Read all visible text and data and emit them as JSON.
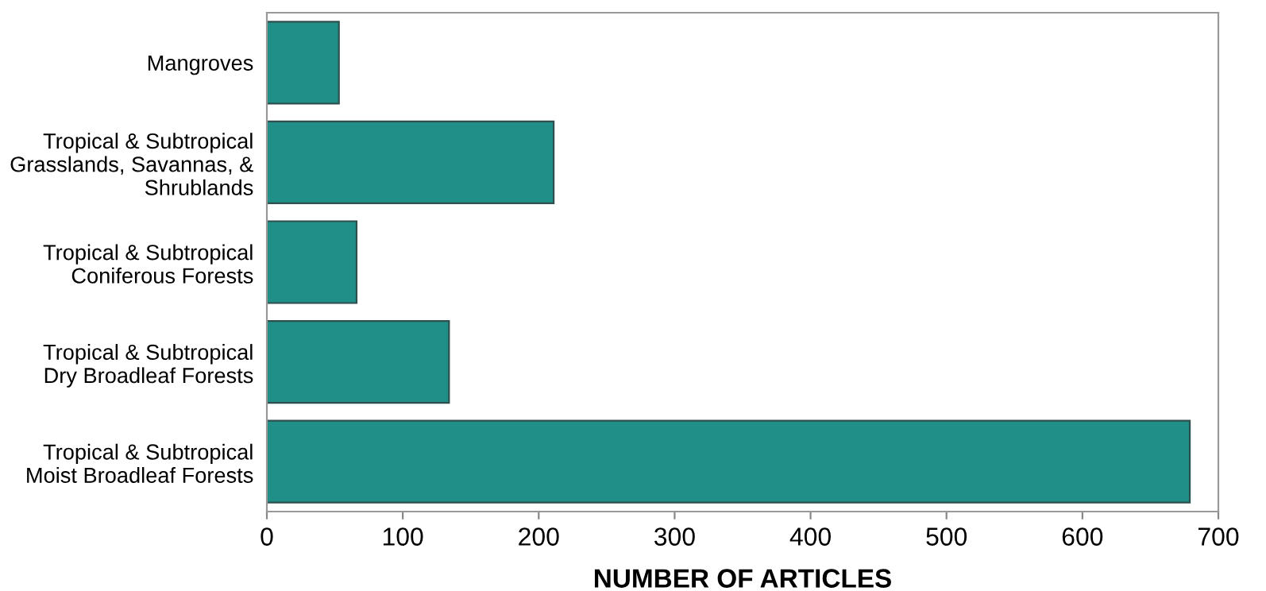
{
  "chart_data": {
    "type": "bar",
    "orientation": "horizontal",
    "xlabel": "NUMBER OF ARTICLES",
    "categories": [
      "Mangroves",
      "Tropical & Subtropical\nGrasslands, Savannas, &\nShrublands",
      "Tropical & Subtropical\nConiferous Forests",
      "Tropical & Subtropical\nDry Broadleaf Forests",
      "Tropical & Subtropical\nMoist Broadleaf Forests"
    ],
    "values": [
      53,
      211,
      66,
      134,
      679
    ],
    "color": "#1f8f87",
    "xlim": [
      0,
      700
    ],
    "xticks": [
      0,
      100,
      200,
      300,
      400,
      500,
      600,
      700
    ],
    "grid": false,
    "legend": false
  }
}
